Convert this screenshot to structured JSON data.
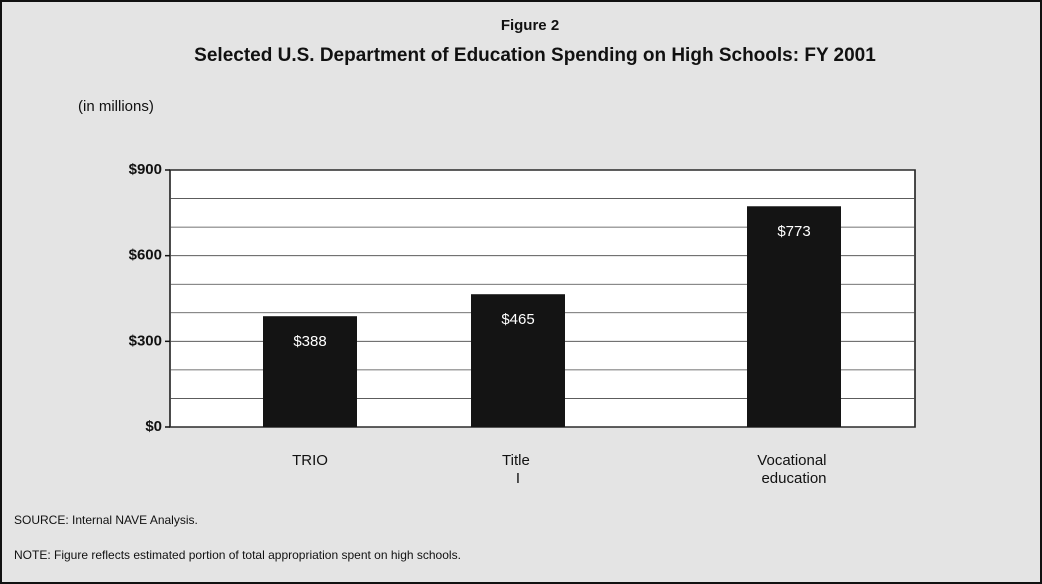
{
  "chart_data": {
    "type": "bar",
    "label": "Figure 2",
    "title": "Selected U.S. Department of Education Spending on High Schools: FY 2001",
    "y_label": "(in millions)",
    "categories": [
      "TRIO",
      "Title I",
      "Vocational education"
    ],
    "values": [
      388,
      465,
      773
    ],
    "value_labels": [
      "$388",
      "$465",
      "$773"
    ],
    "color": "#141414",
    "ylim": [
      0,
      900
    ],
    "yticks": [
      {
        "value": 0,
        "label": "$0"
      },
      {
        "value": 300,
        "label": "$300"
      },
      {
        "value": 600,
        "label": "$600"
      },
      {
        "value": 900,
        "label": "$900"
      }
    ],
    "minor_yticks": [
      100,
      200,
      400,
      500,
      700,
      800
    ],
    "grid": true,
    "source": "SOURCE: Internal NAVE Analysis.",
    "note": "NOTE: Figure reflects estimated portion of total appropriation spent on high schools."
  }
}
